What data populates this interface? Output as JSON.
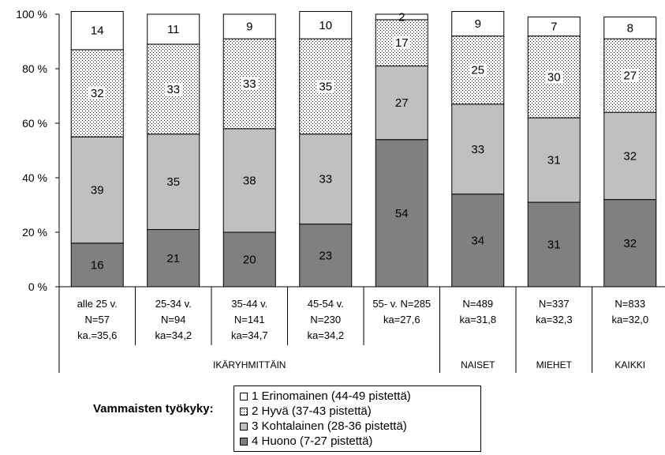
{
  "chart_data": {
    "type": "bar",
    "stacked": true,
    "percent": true,
    "ylim": [
      0,
      100
    ],
    "yticks": [
      "0 %",
      "20 %",
      "40 %",
      "60 %",
      "80 %",
      "100 %"
    ],
    "grid": false,
    "categories": [
      [
        "alle 25 v.",
        "N=57",
        "ka.=35,6"
      ],
      [
        "25-34 v.",
        "N=94",
        "ka=34,2"
      ],
      [
        "35-44 v.",
        "N=141",
        "ka=34,7"
      ],
      [
        "45-54 v.",
        "N=230",
        "ka=34,2"
      ],
      [
        "55- v. N=285",
        "ka=27,6"
      ],
      [
        "N=489",
        "ka=31,8"
      ],
      [
        "N=337",
        "ka=32,3"
      ],
      [
        "N=833",
        "ka=32,0"
      ]
    ],
    "groups": [
      {
        "label": "IKÄRYHMITTÄIN",
        "span": 5
      },
      {
        "label": "NAISET",
        "span": 1
      },
      {
        "label": "MIEHET",
        "span": 1
      },
      {
        "label": "KAIKKI",
        "span": 1
      }
    ],
    "series": [
      {
        "name": "4 Huono (7-27 pistettä)",
        "values": [
          16,
          21,
          20,
          23,
          54,
          34,
          31,
          32
        ],
        "color": "#808080",
        "pattern": "solid"
      },
      {
        "name": "3 Kohtalainen (28-36 pistettä)",
        "values": [
          39,
          35,
          38,
          33,
          27,
          33,
          31,
          32
        ],
        "color": "#c0c0c0",
        "pattern": "solid"
      },
      {
        "name": "2 Hyvä (37-43 pistettä)",
        "values": [
          32,
          33,
          33,
          35,
          17,
          25,
          30,
          27
        ],
        "color": "#ffffff",
        "pattern": "dots"
      },
      {
        "name": "1 Erinomainen (44-49 pistettä)",
        "values": [
          14,
          11,
          9,
          10,
          2,
          9,
          7,
          8
        ],
        "color": "#ffffff",
        "pattern": "solid"
      }
    ],
    "legend_title": "Vammaisten työkyky:",
    "legend_order": [
      3,
      2,
      1,
      0
    ],
    "legend_position": "bottom"
  }
}
